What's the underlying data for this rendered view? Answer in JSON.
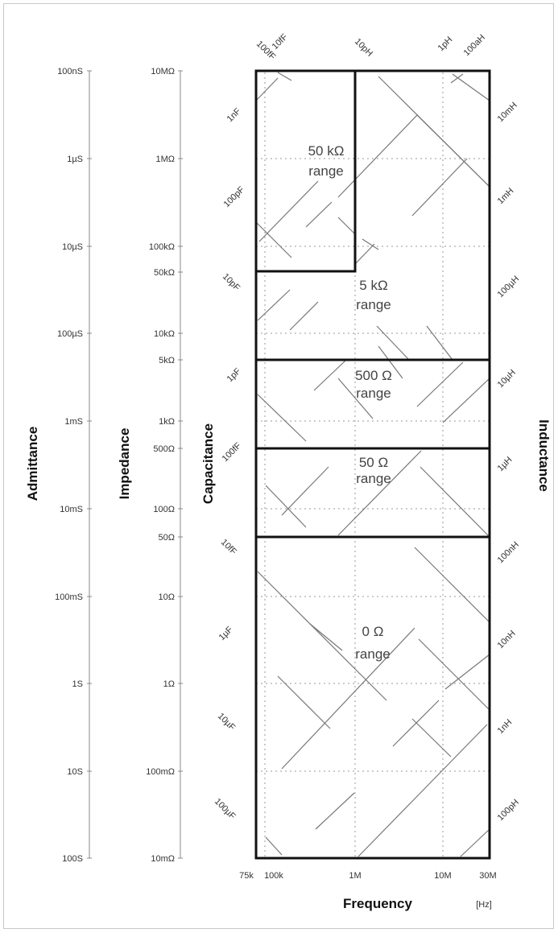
{
  "admittance": {
    "title": "Admittance",
    "ticks": [
      "100nS",
      "1µS",
      "10µS",
      "100µS",
      "1mS",
      "10mS",
      "100mS",
      "1S",
      "10S",
      "100S"
    ]
  },
  "impedance": {
    "title": "Impedance",
    "ticks": [
      "10MΩ",
      "1MΩ",
      "100kΩ",
      "10kΩ",
      "1kΩ",
      "100Ω",
      "10Ω",
      "1Ω",
      "100mΩ",
      "10mΩ"
    ],
    "extra_ticks": [
      "50kΩ",
      "5kΩ",
      "500Ω",
      "50Ω"
    ]
  },
  "capacitance": {
    "title": "Capacitance",
    "labels": [
      "1nF",
      "100pF",
      "10pF",
      "1pF",
      "100fF",
      "10fF",
      "1µF",
      "10µF",
      "100µF"
    ]
  },
  "inductance": {
    "title": "Inductance",
    "labels": [
      "10mH",
      "1mH",
      "100µH",
      "10µH",
      "1µH",
      "100nH",
      "10nH",
      "1nH",
      "100pH"
    ]
  },
  "top_labels": [
    "100fF",
    "10fF",
    "10pH",
    "1pH",
    "100aH"
  ],
  "frequency": {
    "title": "Frequency",
    "unit": "[Hz]",
    "ticks": [
      "75k",
      "100k",
      "1M",
      "10M",
      "30M"
    ]
  },
  "ranges": [
    {
      "line1": "50 kΩ",
      "line2": "range"
    },
    {
      "line1": "5 kΩ",
      "line2": "range"
    },
    {
      "line1": "500 Ω",
      "line2": "range"
    },
    {
      "line1": "50 Ω",
      "line2": "range"
    },
    {
      "line1": "0 Ω",
      "line2": "range"
    }
  ]
}
